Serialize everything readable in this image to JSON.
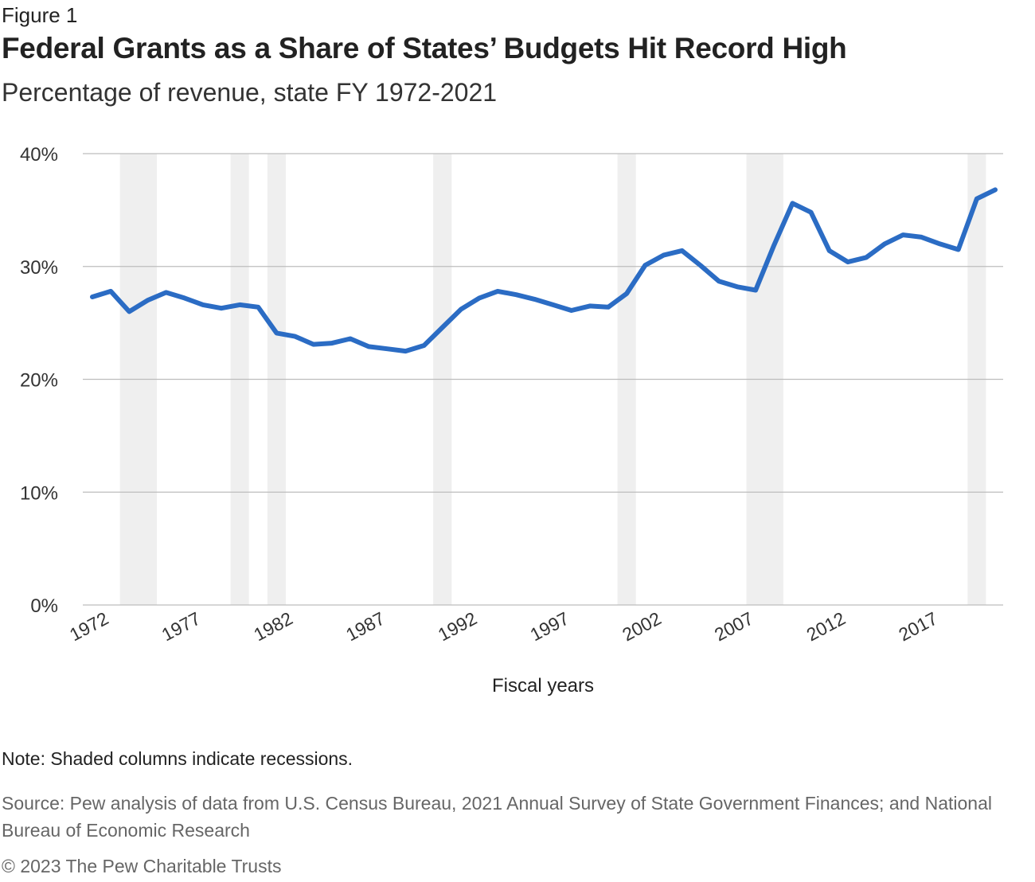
{
  "figure_label": "Figure 1",
  "title": "Federal Grants as a Share of States’ Budgets Hit Record High",
  "subtitle": "Percentage of revenue, state FY 1972-2021",
  "note": "Note: Shaded columns indicate recessions.",
  "source": "Source: Pew analysis of data from U.S. Census Bureau, 2021 Annual Survey of State Government Finances; and National Bureau of Economic Research",
  "copyright": "© 2023 The Pew Charitable Trusts",
  "colors": {
    "line": "#2b6cc4",
    "recession": "#efefef",
    "grid": "#bdbdbd"
  },
  "chart_data": {
    "type": "line",
    "xlabel": "Fiscal years",
    "ylabel": "",
    "ylim": [
      0,
      40
    ],
    "yticks": [
      0,
      10,
      20,
      30,
      40
    ],
    "ytick_labels": [
      "0%",
      "10%",
      "20%",
      "30%",
      "40%"
    ],
    "xlim": [
      1972,
      2021
    ],
    "xticks": [
      1972,
      1977,
      1982,
      1987,
      1992,
      1997,
      2002,
      2007,
      2012,
      2017
    ],
    "xtick_labels": [
      "1972",
      "1977",
      "1982",
      "1987",
      "1992",
      "1997",
      "2002",
      "2007",
      "2012",
      "2017"
    ],
    "grid": true,
    "recessions": [
      [
        1974,
        1975
      ],
      [
        1980,
        1980
      ],
      [
        1982,
        1982
      ],
      [
        1991,
        1991
      ],
      [
        2001,
        2001
      ],
      [
        2008,
        2009
      ],
      [
        2020,
        2020
      ]
    ],
    "series": [
      {
        "values": [
          [
            1972,
            27.3
          ],
          [
            1973,
            27.8
          ],
          [
            1974,
            26.0
          ],
          [
            1975,
            27.0
          ],
          [
            1976,
            27.7
          ],
          [
            1977,
            27.2
          ],
          [
            1978,
            26.6
          ],
          [
            1979,
            26.3
          ],
          [
            1980,
            26.6
          ],
          [
            1981,
            26.4
          ],
          [
            1982,
            24.1
          ],
          [
            1983,
            23.8
          ],
          [
            1984,
            23.1
          ],
          [
            1985,
            23.2
          ],
          [
            1986,
            23.6
          ],
          [
            1987,
            22.9
          ],
          [
            1988,
            22.7
          ],
          [
            1989,
            22.5
          ],
          [
            1990,
            23.0
          ],
          [
            1991,
            24.6
          ],
          [
            1992,
            26.2
          ],
          [
            1993,
            27.2
          ],
          [
            1994,
            27.8
          ],
          [
            1995,
            27.5
          ],
          [
            1996,
            27.1
          ],
          [
            1997,
            26.6
          ],
          [
            1998,
            26.1
          ],
          [
            1999,
            26.5
          ],
          [
            2000,
            26.4
          ],
          [
            2001,
            27.6
          ],
          [
            2002,
            30.1
          ],
          [
            2003,
            31.0
          ],
          [
            2004,
            31.4
          ],
          [
            2005,
            30.1
          ],
          [
            2006,
            28.7
          ],
          [
            2007,
            28.2
          ],
          [
            2008,
            27.9
          ],
          [
            2009,
            31.9
          ],
          [
            2010,
            35.6
          ],
          [
            2011,
            34.8
          ],
          [
            2012,
            31.4
          ],
          [
            2013,
            30.4
          ],
          [
            2014,
            30.8
          ],
          [
            2015,
            32.0
          ],
          [
            2016,
            32.8
          ],
          [
            2017,
            32.6
          ],
          [
            2018,
            32.0
          ],
          [
            2019,
            31.5
          ],
          [
            2020,
            36.0
          ],
          [
            2021,
            36.8
          ]
        ]
      }
    ]
  }
}
